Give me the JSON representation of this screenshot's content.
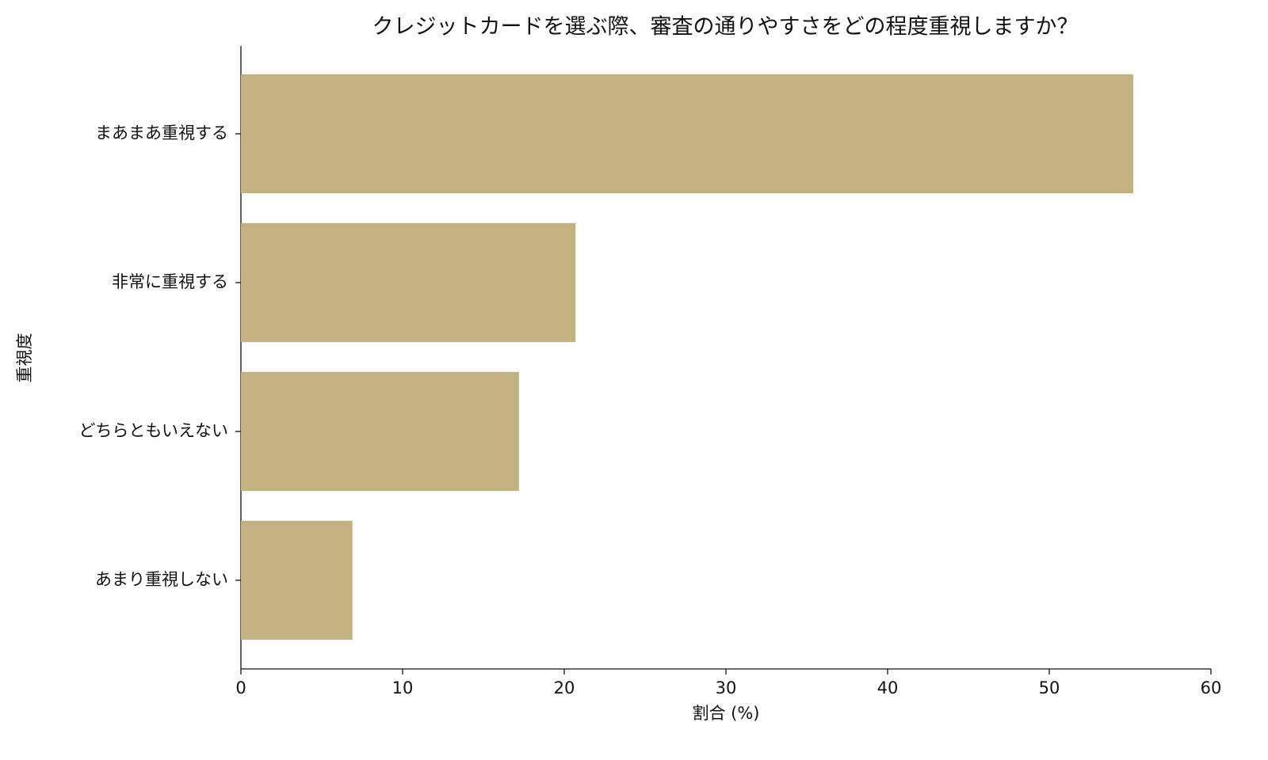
{
  "chart_data": {
    "type": "bar",
    "orientation": "horizontal",
    "title": "クレジットカードを選ぶ際、審査の通りやすさをどの程度重視しますか？",
    "x_label": "割合 (%)",
    "y_label": "重視度",
    "categories": [
      "まあまあ重視する",
      "非常に重視する",
      "どちらともいえない",
      "あまり重視しない"
    ],
    "values": [
      55.2,
      20.7,
      17.2,
      6.9
    ],
    "color": "#c2b280",
    "xlim": [
      0,
      60
    ],
    "xticks": [
      0,
      10,
      20,
      30,
      40,
      50,
      60
    ],
    "grid": false
  }
}
